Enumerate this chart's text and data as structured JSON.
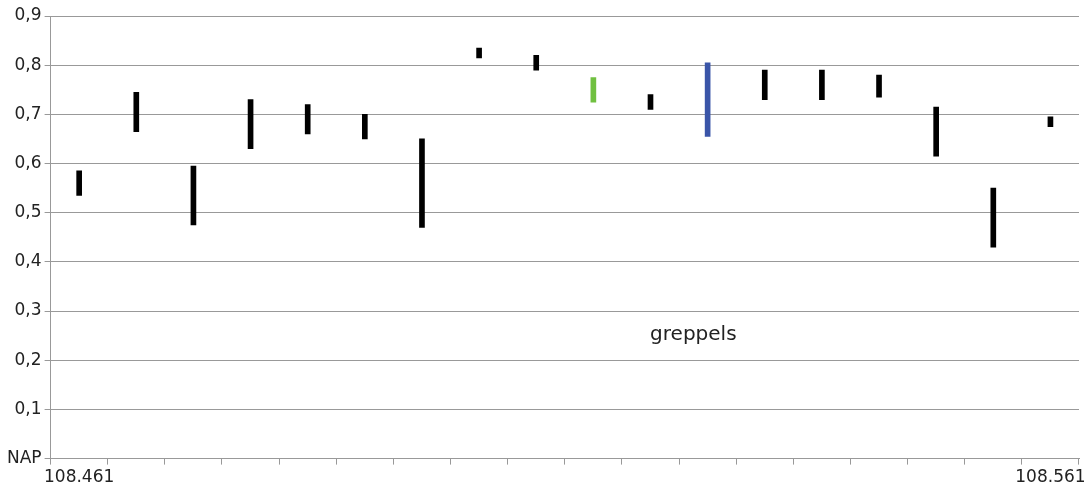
{
  "chart_data": {
    "type": "bar",
    "categories": [
      "108.461",
      null,
      null,
      null,
      null,
      null,
      null,
      null,
      null,
      null,
      null,
      null,
      null,
      null,
      null,
      null,
      null,
      "108.561"
    ],
    "base": [
      0.535,
      0.665,
      0.475,
      0.63,
      0.66,
      0.65,
      0.47,
      0.815,
      0.79,
      0.725,
      0.71,
      0.655,
      0.73,
      0.73,
      0.735,
      0.615,
      0.43,
      0.675
    ],
    "values": [
      0.05,
      0.08,
      0.12,
      0.1,
      0.06,
      0.05,
      0.18,
      0.02,
      0.03,
      0.05,
      0.03,
      0.15,
      0.06,
      0.06,
      0.045,
      0.1,
      0.12,
      0.02
    ],
    "colors": [
      "#000000",
      "#000000",
      "#000000",
      "#000000",
      "#000000",
      "#000000",
      "#000000",
      "#000000",
      "#000000",
      "#70c040",
      "#000000",
      "#3a55a8",
      "#000000",
      "#000000",
      "#000000",
      "#000000",
      "#000000",
      "#000000"
    ],
    "ylim": [
      0,
      0.9
    ],
    "yticks": [
      {
        "value": 0,
        "label": "NAP"
      },
      {
        "value": 0.1,
        "label": "0,1"
      },
      {
        "value": 0.2,
        "label": "0,2"
      },
      {
        "value": 0.3,
        "label": "0,3"
      },
      {
        "value": 0.4,
        "label": "0,4"
      },
      {
        "value": 0.5,
        "label": "0,5"
      },
      {
        "value": 0.6,
        "label": "0,6"
      },
      {
        "value": 0.7,
        "label": "0,7"
      },
      {
        "value": 0.8,
        "label": "0,8"
      },
      {
        "value": 0.9,
        "label": "0,9"
      }
    ],
    "grid": "y",
    "legend": false,
    "annotations": [
      "greppels"
    ]
  }
}
